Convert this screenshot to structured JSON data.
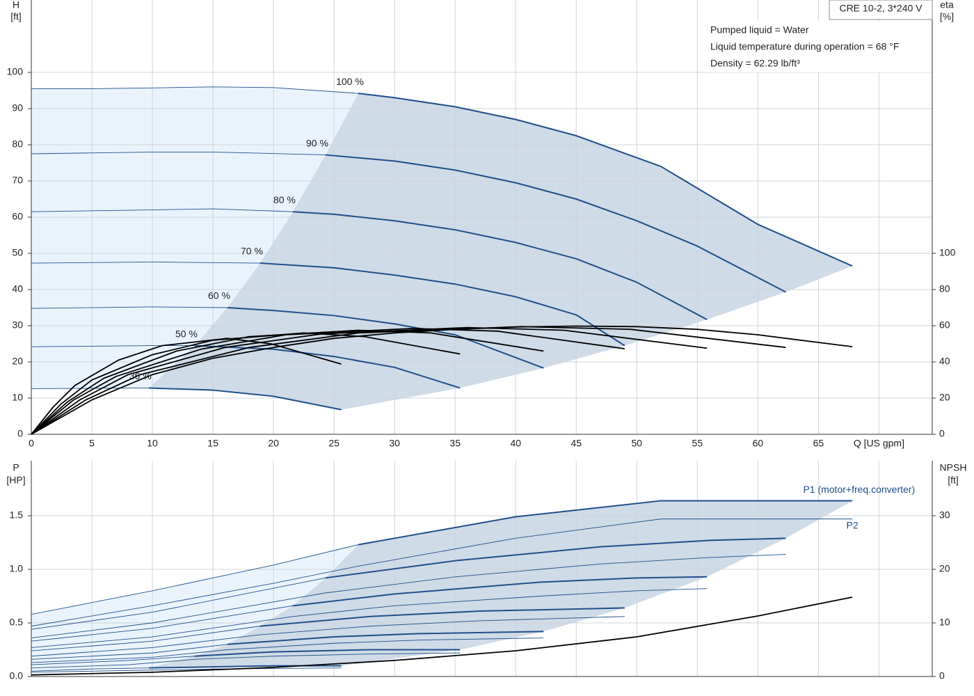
{
  "chart_data": [
    {
      "type": "line",
      "ylabel": "H",
      "yunit": "[ft]",
      "y2label": "eta",
      "y2unit": "[%]",
      "model": "CRE 10-2, 3*240 V",
      "notes": [
        "Pumped liquid = Water",
        "Liquid temperature during operation = 68 °F",
        "Density = 62.29 lb/ft³"
      ],
      "xlim": [
        0,
        74.4
      ],
      "ylim": [
        0,
        120
      ],
      "y2lim": [
        0,
        240
      ],
      "xticks": [
        0,
        5,
        10,
        15,
        20,
        25,
        30,
        35,
        40,
        45,
        50,
        55,
        60,
        65,
        {
          "value": 70,
          "label": "Q [US gpm]"
        }
      ],
      "yticks": [
        0,
        10,
        20,
        30,
        40,
        50,
        60,
        70,
        80,
        90,
        100
      ],
      "y2ticks": [
        0,
        20,
        40,
        60,
        80,
        100
      ],
      "grid": true,
      "series": [
        {
          "name": "100 %",
          "color": "#1f4e89",
          "min_flow": 27,
          "x": [
            0,
            5,
            10,
            15,
            20,
            27,
            30,
            35,
            40,
            45,
            52,
            55,
            60,
            67.8
          ],
          "values": [
            95.5,
            95.5,
            95.7,
            96,
            95.8,
            94.2,
            93,
            90.5,
            87,
            82.5,
            74,
            68,
            58,
            46.5
          ]
        },
        {
          "name": "90 %",
          "color": "#1f4e89",
          "min_flow": 24.3,
          "x": [
            0,
            10,
            15,
            24.3,
            30,
            35,
            40,
            45,
            50,
            55,
            62.3
          ],
          "values": [
            77.5,
            78,
            78,
            77.2,
            75.5,
            73,
            69.5,
            65,
            59,
            52,
            39.3
          ]
        },
        {
          "name": "80 %",
          "color": "#1f4e89",
          "min_flow": 21.6,
          "x": [
            0,
            10,
            15,
            21.6,
            25,
            30,
            35,
            40,
            45,
            50,
            55.8
          ],
          "values": [
            61.5,
            62,
            62.3,
            61.5,
            60.8,
            59,
            56.5,
            53,
            48.5,
            42,
            31.7
          ]
        },
        {
          "name": "70 %",
          "color": "#1f4e89",
          "min_flow": 18.9,
          "x": [
            0,
            10,
            18.9,
            25,
            30,
            35,
            40,
            45,
            49
          ],
          "values": [
            47.3,
            47.6,
            47.3,
            46,
            44,
            41.5,
            38,
            33,
            24.5
          ]
        },
        {
          "name": "60 %",
          "color": "#1f4e89",
          "min_flow": 16.2,
          "x": [
            0,
            10,
            16.2,
            20,
            25,
            30,
            35,
            42.3
          ],
          "values": [
            34.8,
            35.2,
            35,
            34.2,
            32.8,
            30.5,
            27.5,
            18.3
          ]
        },
        {
          "name": "50 %",
          "color": "#1f4e89",
          "min_flow": 13.5,
          "x": [
            0,
            10,
            13.5,
            20,
            25,
            30,
            35.4
          ],
          "values": [
            24.2,
            24.5,
            24.5,
            23.5,
            21.5,
            18.5,
            12.8
          ]
        },
        {
          "name": "36 %",
          "color": "#1f4e89",
          "min_flow": 9.7,
          "x": [
            0,
            9.7,
            15,
            20,
            25.6
          ],
          "values": [
            12.6,
            12.8,
            12.2,
            10.5,
            6.8
          ]
        },
        {
          "axis": "y2",
          "color": "#000000",
          "x": [
            0,
            5,
            10,
            15,
            20,
            25,
            30,
            35,
            40,
            45,
            50,
            55,
            60,
            67.8
          ],
          "values": [
            0,
            19,
            33,
            42,
            48,
            53,
            56,
            58,
            59.3,
            59.8,
            59.5,
            58,
            55,
            48.4
          ]
        },
        {
          "axis": "y2",
          "color": "#000000",
          "x": [
            0,
            4.5,
            9,
            18,
            27,
            40.5,
            49.5,
            62.3
          ],
          "values": [
            0,
            19,
            33,
            48,
            56,
            59.5,
            58,
            48
          ]
        },
        {
          "axis": "y2",
          "color": "#000000",
          "x": [
            0,
            4,
            8,
            16,
            24,
            36,
            44,
            55.8
          ],
          "values": [
            0,
            19,
            33,
            48,
            55.5,
            59,
            57.5,
            47.6
          ]
        },
        {
          "axis": "y2",
          "color": "#000000",
          "x": [
            0,
            3.5,
            7,
            14,
            21,
            31.5,
            38.5,
            49
          ],
          "values": [
            0,
            19,
            32,
            47,
            55,
            58.5,
            57,
            47.3
          ]
        },
        {
          "axis": "y2",
          "color": "#000000",
          "x": [
            0,
            3,
            6,
            12,
            18,
            27,
            33,
            42.3
          ],
          "values": [
            0,
            18,
            31,
            46,
            54,
            57.5,
            56,
            46
          ]
        },
        {
          "axis": "y2",
          "color": "#000000",
          "x": [
            0,
            2.5,
            5,
            10,
            15,
            22.5,
            27.5,
            35.4
          ],
          "values": [
            0,
            17,
            30,
            44,
            52,
            56,
            54,
            44.4
          ]
        },
        {
          "axis": "y2",
          "color": "#000000",
          "x": [
            0,
            1.8,
            3.6,
            7.2,
            10.8,
            16.2,
            19.8,
            25.6
          ],
          "values": [
            0,
            15,
            27,
            41,
            49,
            53,
            50,
            38.8
          ]
        }
      ]
    },
    {
      "type": "line",
      "ylabel": "P",
      "yunit": "[HP]",
      "y2label": "NPSH",
      "y2unit": "[ft]",
      "xlim": [
        0,
        74.4
      ],
      "ylim": [
        0,
        2.013
      ],
      "y2lim": [
        0,
        40.26
      ],
      "xticks": [
        0,
        5,
        10,
        15,
        20,
        25,
        30,
        35,
        40,
        45,
        50,
        55,
        60,
        65,
        70
      ],
      "xtick_labels": false,
      "yticks": [
        {
          "value": 0,
          "label": "0.0"
        },
        0.5,
        {
          "value": 1,
          "label": "1.0"
        },
        1.5
      ],
      "y2ticks": [
        0,
        10,
        20,
        30
      ],
      "grid": true,
      "series": [
        {
          "name": "P1 (motor+freq.converter)",
          "label_side": "above",
          "color": "#1f4e89",
          "min_flow": 27,
          "x": [
            0,
            10,
            20,
            27,
            40,
            52,
            67.8
          ],
          "values": [
            0.58,
            0.8,
            1.04,
            1.23,
            1.49,
            1.64,
            1.64
          ]
        },
        {
          "color": "#1f4e89",
          "min_flow": 24.3,
          "x": [
            0,
            10,
            24.3,
            35,
            47,
            56,
            62.3
          ],
          "values": [
            0.44,
            0.6,
            0.92,
            1.08,
            1.21,
            1.27,
            1.29
          ]
        },
        {
          "color": "#1f4e89",
          "min_flow": 21.6,
          "x": [
            0,
            10,
            21.6,
            30,
            42,
            50,
            55.8
          ],
          "values": [
            0.33,
            0.45,
            0.66,
            0.77,
            0.88,
            0.92,
            0.93
          ]
        },
        {
          "color": "#1f4e89",
          "min_flow": 18.9,
          "x": [
            0,
            10,
            18.9,
            28,
            37,
            49
          ],
          "values": [
            0.24,
            0.33,
            0.47,
            0.56,
            0.61,
            0.64
          ]
        },
        {
          "color": "#1f4e89",
          "min_flow": 16.2,
          "x": [
            0,
            10,
            16.2,
            25,
            32,
            42.3
          ],
          "values": [
            0.16,
            0.22,
            0.3,
            0.37,
            0.4,
            0.42
          ]
        },
        {
          "color": "#1f4e89",
          "min_flow": 13.5,
          "x": [
            0,
            8,
            13.5,
            20,
            28,
            35.4
          ],
          "values": [
            0.11,
            0.15,
            0.19,
            0.23,
            0.25,
            0.25
          ]
        },
        {
          "color": "#1f4e89",
          "min_flow": 9.7,
          "x": [
            0,
            5,
            9.7,
            15,
            20,
            25.6
          ],
          "values": [
            0.05,
            0.07,
            0.08,
            0.09,
            0.1,
            0.1
          ]
        },
        {
          "name": "P2",
          "label_side": "below",
          "color": "#1f4e89",
          "x": [
            0,
            10,
            20,
            27,
            40,
            52,
            67.8
          ],
          "values": [
            0.47,
            0.66,
            0.87,
            1.03,
            1.29,
            1.47,
            1.47
          ]
        },
        {
          "color": "#1f4e89",
          "x": [
            0,
            10,
            24.3,
            35,
            47,
            56,
            62.3
          ],
          "values": [
            0.36,
            0.5,
            0.78,
            0.93,
            1.05,
            1.11,
            1.14
          ]
        },
        {
          "color": "#1f4e89",
          "x": [
            0,
            10,
            21.6,
            30,
            42,
            50,
            55.8
          ],
          "values": [
            0.27,
            0.37,
            0.56,
            0.66,
            0.75,
            0.8,
            0.82
          ]
        },
        {
          "color": "#1f4e89",
          "x": [
            0,
            10,
            18.9,
            28,
            37,
            49
          ],
          "values": [
            0.19,
            0.27,
            0.39,
            0.47,
            0.52,
            0.56
          ]
        },
        {
          "color": "#1f4e89",
          "x": [
            0,
            10,
            16.2,
            25,
            32,
            42.3
          ],
          "values": [
            0.13,
            0.18,
            0.25,
            0.31,
            0.34,
            0.36
          ]
        },
        {
          "color": "#1f4e89",
          "x": [
            0,
            8,
            13.5,
            20,
            28,
            35.4
          ],
          "values": [
            0.08,
            0.11,
            0.16,
            0.19,
            0.21,
            0.22
          ]
        },
        {
          "color": "#1f4e89",
          "x": [
            0,
            5,
            9.7,
            15,
            20,
            25.6
          ],
          "values": [
            0.04,
            0.05,
            0.06,
            0.07,
            0.075,
            0.08
          ]
        },
        {
          "axis": "y2",
          "color": "#000000",
          "x": [
            0,
            10,
            20,
            30,
            40,
            50,
            60,
            67.8
          ],
          "values": [
            0.3,
            0.8,
            1.7,
            3,
            4.8,
            7.4,
            11.3,
            14.8
          ]
        }
      ]
    }
  ]
}
